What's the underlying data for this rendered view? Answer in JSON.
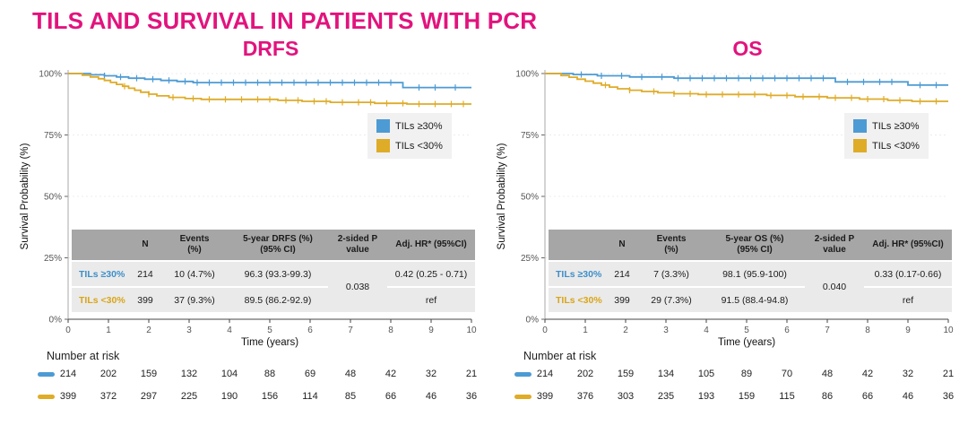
{
  "page": {
    "title": "TILS AND SURVIVAL IN PATIENTS WITH PCR"
  },
  "colors": {
    "accent_pink": "#E2137D",
    "tils_high_blue": "#4D9BD4",
    "tils_low_yellow": "#DFAC28",
    "table_header_bg": "#A6A6A6",
    "table_row_bg": "#EAEAEA"
  },
  "panels": [
    {
      "title": "DRFS",
      "legend": [
        {
          "label": "TILs ≥30%"
        },
        {
          "label": "TILs <30%"
        }
      ],
      "table": {
        "headers": [
          "",
          "N",
          "Events\n(%)",
          "5-year DRFS (%)\n(95% CI)",
          "2-sided P\nvalue",
          "Adj. HR* (95%CI)"
        ],
        "p_value": "0.038",
        "rows": [
          {
            "label": "TILs ≥30%",
            "n": "214",
            "events": "10 (4.7%)",
            "five_year": "96.3 (93.3-99.3)",
            "hr": "0.42 (0.25 - 0.71)"
          },
          {
            "label": "TILs <30%",
            "n": "399",
            "events": "37 (9.3%)",
            "five_year": "89.5 (86.2-92.9)",
            "hr": "ref"
          }
        ]
      },
      "number_at_risk": {
        "title": "Number at risk",
        "rows": [
          {
            "group": "TILs ≥30%",
            "values": [
              214,
              202,
              159,
              132,
              104,
              88,
              69,
              48,
              42,
              32,
              21
            ]
          },
          {
            "group": "TILs <30%",
            "values": [
              399,
              372,
              297,
              225,
              190,
              156,
              114,
              85,
              66,
              46,
              36
            ]
          }
        ]
      }
    },
    {
      "title": "OS",
      "legend": [
        {
          "label": "TILs ≥30%"
        },
        {
          "label": "TILs <30%"
        }
      ],
      "table": {
        "headers": [
          "",
          "N",
          "Events\n(%)",
          "5-year OS (%)\n(95% CI)",
          "2-sided P\nvalue",
          "Adj. HR* (95%CI)"
        ],
        "p_value": "0.040",
        "rows": [
          {
            "label": "TILs ≥30%",
            "n": "214",
            "events": "7 (3.3%)",
            "five_year": "98.1 (95.9-100)",
            "hr": "0.33 (0.17-0.66)"
          },
          {
            "label": "TILs <30%",
            "n": "399",
            "events": "29 (7.3%)",
            "five_year": "91.5 (88.4-94.8)",
            "hr": "ref"
          }
        ]
      },
      "number_at_risk": {
        "title": "Number at risk",
        "rows": [
          {
            "group": "TILs ≥30%",
            "values": [
              214,
              202,
              159,
              134,
              105,
              89,
              70,
              48,
              42,
              32,
              21
            ]
          },
          {
            "group": "TILs <30%",
            "values": [
              399,
              376,
              303,
              235,
              193,
              159,
              115,
              86,
              66,
              46,
              36
            ]
          }
        ]
      }
    }
  ],
  "chart_data": [
    {
      "type": "line",
      "subtype": "kaplan-meier-step",
      "title": "DRFS",
      "xlabel": "Time (years)",
      "ylabel": "Survival Probability (%)",
      "xlim": [
        0,
        10
      ],
      "ylim": [
        0,
        100
      ],
      "xticks": [
        0,
        1,
        2,
        3,
        4,
        5,
        6,
        7,
        8,
        9,
        10
      ],
      "ytick_labels": [
        "0%",
        "25%",
        "50%",
        "75%",
        "100%"
      ],
      "legend_position": "right-upper",
      "series": [
        {
          "name": "TILs ≥30%",
          "color": "#4D9BD4",
          "points": [
            [
              0,
              100
            ],
            [
              0.55,
              99.5
            ],
            [
              0.9,
              99.1
            ],
            [
              1.2,
              98.6
            ],
            [
              1.5,
              98.1
            ],
            [
              1.9,
              97.7
            ],
            [
              2.3,
              97.2
            ],
            [
              2.7,
              96.8
            ],
            [
              3.1,
              96.3
            ],
            [
              8.3,
              94.3
            ],
            [
              10,
              94.3
            ]
          ],
          "censor_times": [
            0.9,
            1.3,
            1.7,
            2.1,
            2.5,
            2.9,
            3.2,
            3.5,
            3.8,
            4.1,
            4.4,
            4.7,
            5.0,
            5.3,
            5.6,
            5.9,
            6.2,
            6.5,
            6.8,
            7.1,
            7.4,
            7.7,
            8.0,
            8.7,
            9.1,
            9.6
          ]
        },
        {
          "name": "TILs <30%",
          "color": "#DFAC28",
          "points": [
            [
              0,
              100
            ],
            [
              0.35,
              99.3
            ],
            [
              0.55,
              98.6
            ],
            [
              0.75,
              97.9
            ],
            [
              0.9,
              97.2
            ],
            [
              1.05,
              96.4
            ],
            [
              1.2,
              95.6
            ],
            [
              1.35,
              94.8
            ],
            [
              1.5,
              94
            ],
            [
              1.65,
              93.2
            ],
            [
              1.8,
              92.4
            ],
            [
              2,
              91.6
            ],
            [
              2.2,
              90.9
            ],
            [
              2.5,
              90.3
            ],
            [
              2.9,
              89.8
            ],
            [
              3.3,
              89.5
            ],
            [
              5.2,
              89.1
            ],
            [
              5.8,
              88.7
            ],
            [
              6.5,
              88.3
            ],
            [
              7.6,
              87.9
            ],
            [
              8.4,
              87.6
            ],
            [
              10,
              87.6
            ]
          ],
          "censor_times": [
            1.4,
            2.0,
            2.6,
            3.1,
            3.5,
            3.9,
            4.3,
            4.7,
            5.0,
            5.4,
            5.7,
            6.1,
            6.4,
            6.8,
            7.2,
            7.5,
            7.9,
            8.3,
            8.7,
            9.1,
            9.5,
            9.8
          ]
        }
      ]
    },
    {
      "type": "line",
      "subtype": "kaplan-meier-step",
      "title": "OS",
      "xlabel": "Time (years)",
      "ylabel": "Survival Probability (%)",
      "xlim": [
        0,
        10
      ],
      "ylim": [
        0,
        100
      ],
      "xticks": [
        0,
        1,
        2,
        3,
        4,
        5,
        6,
        7,
        8,
        9,
        10
      ],
      "ytick_labels": [
        "0%",
        "25%",
        "50%",
        "75%",
        "100%"
      ],
      "legend_position": "right-upper",
      "series": [
        {
          "name": "TILs ≥30%",
          "color": "#4D9BD4",
          "points": [
            [
              0,
              100
            ],
            [
              0.7,
              99.6
            ],
            [
              1.3,
              99.1
            ],
            [
              2.1,
              98.6
            ],
            [
              3.2,
              98.1
            ],
            [
              7.2,
              96.6
            ],
            [
              9,
              95.3
            ],
            [
              10,
              95.3
            ]
          ],
          "censor_times": [
            0.9,
            1.4,
            1.9,
            2.4,
            2.9,
            3.3,
            3.6,
            3.9,
            4.2,
            4.5,
            4.8,
            5.1,
            5.4,
            5.7,
            6.0,
            6.3,
            6.6,
            6.9,
            7.5,
            7.9,
            8.3,
            8.6,
            9.3,
            9.7
          ]
        },
        {
          "name": "TILs <30%",
          "color": "#DFAC28",
          "points": [
            [
              0,
              100
            ],
            [
              0.4,
              99.2
            ],
            [
              0.6,
              98.5
            ],
            [
              0.8,
              97.7
            ],
            [
              1,
              96.9
            ],
            [
              1.2,
              96.1
            ],
            [
              1.4,
              95.3
            ],
            [
              1.6,
              94.5
            ],
            [
              1.8,
              93.8
            ],
            [
              2.1,
              93.2
            ],
            [
              2.4,
              92.7
            ],
            [
              2.8,
              92.2
            ],
            [
              3.2,
              91.8
            ],
            [
              3.8,
              91.5
            ],
            [
              5.5,
              91.1
            ],
            [
              6.2,
              90.6
            ],
            [
              7,
              90.1
            ],
            [
              7.8,
              89.6
            ],
            [
              8.5,
              89.1
            ],
            [
              9.1,
              88.7
            ],
            [
              10,
              88.7
            ]
          ],
          "censor_times": [
            1.5,
            2.1,
            2.7,
            3.2,
            3.6,
            4.0,
            4.4,
            4.8,
            5.2,
            5.6,
            6.0,
            6.4,
            6.8,
            7.2,
            7.6,
            8.0,
            8.4,
            8.8,
            9.3,
            9.7
          ]
        }
      ]
    }
  ]
}
